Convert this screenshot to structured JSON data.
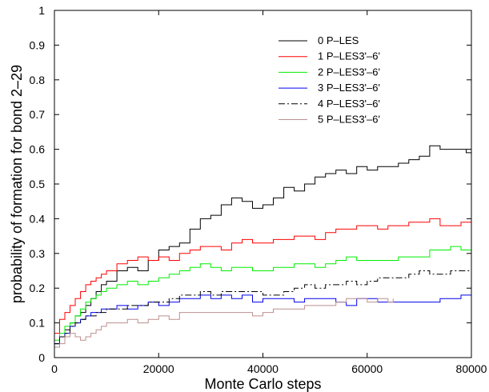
{
  "chart_data": {
    "type": "line",
    "title": "",
    "xlabel": "Monte Carlo steps",
    "ylabel": "probability of formation for bond 2–29",
    "xlim": [
      0,
      80000
    ],
    "ylim": [
      0,
      1
    ],
    "xticks": [
      0,
      20000,
      40000,
      60000,
      80000
    ],
    "xtick_labels": [
      "0",
      "20000",
      "40000",
      "60000",
      "80000"
    ],
    "yticks": [
      0,
      0.1,
      0.2,
      0.3,
      0.4,
      0.5,
      0.6,
      0.7,
      0.8,
      0.9,
      1
    ],
    "ytick_labels": [
      "0",
      "0.1",
      "0.2",
      "0.3",
      "0.4",
      "0.5",
      "0.6",
      "0.7",
      "0.8",
      "0.9",
      "1"
    ],
    "grid": false,
    "legend_position": "top-right",
    "series": [
      {
        "name": "0 P–LES",
        "color": "#000000",
        "dash": "",
        "x": [
          0,
          1000,
          2000,
          3000,
          4000,
          5000,
          6000,
          7000,
          8000,
          9000,
          10000,
          12000,
          14000,
          16000,
          18000,
          20000,
          22000,
          24000,
          26000,
          28000,
          30000,
          32000,
          34000,
          36000,
          38000,
          40000,
          42000,
          44000,
          46000,
          48000,
          50000,
          52000,
          54000,
          56000,
          58000,
          60000,
          62000,
          64000,
          66000,
          68000,
          70000,
          72000,
          74000,
          76000,
          78000,
          79000,
          80000
        ],
        "y": [
          0.04,
          0.06,
          0.08,
          0.1,
          0.12,
          0.13,
          0.15,
          0.17,
          0.19,
          0.21,
          0.22,
          0.25,
          0.26,
          0.25,
          0.28,
          0.31,
          0.32,
          0.33,
          0.37,
          0.4,
          0.41,
          0.44,
          0.46,
          0.45,
          0.43,
          0.44,
          0.46,
          0.49,
          0.48,
          0.5,
          0.52,
          0.53,
          0.54,
          0.53,
          0.55,
          0.54,
          0.55,
          0.55,
          0.56,
          0.57,
          0.58,
          0.61,
          0.6,
          0.6,
          0.6,
          0.59,
          0.58
        ]
      },
      {
        "name": "1 P–LES3'–6'",
        "color": "#ff0000",
        "dash": "",
        "x": [
          0,
          1000,
          2000,
          3000,
          4000,
          5000,
          6000,
          7000,
          8000,
          9000,
          10000,
          12000,
          14000,
          16000,
          18000,
          20000,
          22000,
          24000,
          26000,
          28000,
          30000,
          32000,
          34000,
          36000,
          38000,
          40000,
          42000,
          44000,
          46000,
          48000,
          50000,
          52000,
          54000,
          56000,
          58000,
          60000,
          62000,
          64000,
          66000,
          68000,
          70000,
          72000,
          74000,
          76000,
          78000,
          80000
        ],
        "y": [
          0.07,
          0.11,
          0.13,
          0.15,
          0.17,
          0.19,
          0.21,
          0.22,
          0.23,
          0.24,
          0.25,
          0.27,
          0.28,
          0.29,
          0.28,
          0.29,
          0.28,
          0.3,
          0.31,
          0.32,
          0.32,
          0.31,
          0.33,
          0.34,
          0.33,
          0.33,
          0.34,
          0.34,
          0.35,
          0.35,
          0.34,
          0.36,
          0.37,
          0.37,
          0.38,
          0.38,
          0.37,
          0.38,
          0.38,
          0.39,
          0.39,
          0.4,
          0.38,
          0.38,
          0.39,
          0.39
        ]
      },
      {
        "name": "2 P–LES3'–6'",
        "color": "#00ee00",
        "dash": "",
        "x": [
          0,
          1000,
          2000,
          3000,
          4000,
          5000,
          6000,
          7000,
          8000,
          9000,
          10000,
          12000,
          14000,
          16000,
          18000,
          20000,
          22000,
          24000,
          26000,
          28000,
          30000,
          32000,
          34000,
          36000,
          38000,
          40000,
          42000,
          44000,
          46000,
          48000,
          50000,
          52000,
          54000,
          56000,
          58000,
          60000,
          62000,
          64000,
          66000,
          68000,
          70000,
          72000,
          74000,
          76000,
          78000,
          80000
        ],
        "y": [
          0.05,
          0.07,
          0.09,
          0.1,
          0.12,
          0.14,
          0.16,
          0.17,
          0.18,
          0.19,
          0.2,
          0.21,
          0.22,
          0.21,
          0.22,
          0.23,
          0.24,
          0.25,
          0.26,
          0.27,
          0.26,
          0.25,
          0.26,
          0.26,
          0.25,
          0.25,
          0.26,
          0.26,
          0.27,
          0.27,
          0.26,
          0.27,
          0.28,
          0.29,
          0.28,
          0.28,
          0.28,
          0.28,
          0.29,
          0.29,
          0.29,
          0.31,
          0.31,
          0.32,
          0.31,
          0.3
        ]
      },
      {
        "name": "3 P–LES3'–6'",
        "color": "#0000ee",
        "dash": "",
        "x": [
          0,
          1000,
          2000,
          3000,
          4000,
          5000,
          6000,
          7000,
          8000,
          9000,
          10000,
          12000,
          14000,
          16000,
          18000,
          20000,
          22000,
          24000,
          26000,
          28000,
          30000,
          32000,
          34000,
          36000,
          38000,
          40000,
          42000,
          44000,
          46000,
          48000,
          50000,
          52000,
          54000,
          56000,
          58000,
          60000,
          62000,
          64000,
          66000,
          68000,
          70000,
          72000,
          74000,
          76000,
          78000,
          80000
        ],
        "y": [
          0.04,
          0.06,
          0.07,
          0.09,
          0.1,
          0.11,
          0.12,
          0.13,
          0.13,
          0.14,
          0.14,
          0.15,
          0.14,
          0.15,
          0.16,
          0.15,
          0.16,
          0.17,
          0.17,
          0.18,
          0.17,
          0.18,
          0.17,
          0.18,
          0.16,
          0.17,
          0.17,
          0.17,
          0.16,
          0.17,
          0.17,
          0.17,
          0.16,
          0.15,
          0.17,
          0.17,
          0.16,
          0.16,
          0.16,
          0.16,
          0.16,
          0.16,
          0.17,
          0.17,
          0.18,
          0.18
        ]
      },
      {
        "name": "4 P–LES3'–6'",
        "color": "#000000",
        "dash": "8,3,2,3",
        "x": [
          0,
          1000,
          2000,
          3000,
          4000,
          5000,
          6000,
          7000,
          8000,
          9000,
          10000,
          12000,
          14000,
          16000,
          18000,
          20000,
          22000,
          24000,
          26000,
          28000,
          30000,
          32000,
          34000,
          36000,
          38000,
          40000,
          42000,
          44000,
          46000,
          48000,
          50000,
          52000,
          54000,
          56000,
          58000,
          60000,
          62000,
          64000,
          66000,
          68000,
          70000,
          72000,
          74000,
          76000,
          78000,
          80000
        ],
        "y": [
          0.04,
          0.06,
          0.07,
          0.09,
          0.1,
          0.11,
          0.12,
          0.12,
          0.13,
          0.13,
          0.14,
          0.14,
          0.15,
          0.15,
          0.16,
          0.16,
          0.17,
          0.18,
          0.18,
          0.19,
          0.18,
          0.19,
          0.19,
          0.19,
          0.19,
          0.18,
          0.18,
          0.19,
          0.2,
          0.21,
          0.2,
          0.21,
          0.21,
          0.22,
          0.21,
          0.22,
          0.23,
          0.23,
          0.23,
          0.24,
          0.25,
          0.24,
          0.24,
          0.25,
          0.25,
          0.25
        ]
      },
      {
        "name": "5 P–LES3'–6'",
        "color": "#bc8f8f",
        "dash": "",
        "x": [
          0,
          1000,
          2000,
          3000,
          4000,
          5000,
          6000,
          7000,
          8000,
          9000,
          10000,
          12000,
          14000,
          16000,
          18000,
          20000,
          22000,
          24000,
          26000,
          28000,
          30000,
          32000,
          34000,
          36000,
          38000,
          40000,
          42000,
          44000,
          46000,
          48000,
          50000,
          52000,
          54000,
          56000,
          58000,
          60000,
          62000,
          64000,
          65000
        ],
        "y": [
          0.03,
          0.04,
          0.06,
          0.07,
          0.06,
          0.05,
          0.06,
          0.07,
          0.08,
          0.09,
          0.1,
          0.1,
          0.11,
          0.1,
          0.11,
          0.12,
          0.11,
          0.13,
          0.13,
          0.13,
          0.13,
          0.13,
          0.13,
          0.13,
          0.12,
          0.13,
          0.14,
          0.14,
          0.14,
          0.15,
          0.15,
          0.15,
          0.16,
          0.17,
          0.17,
          0.16,
          0.17,
          0.16,
          0.17
        ]
      }
    ]
  }
}
